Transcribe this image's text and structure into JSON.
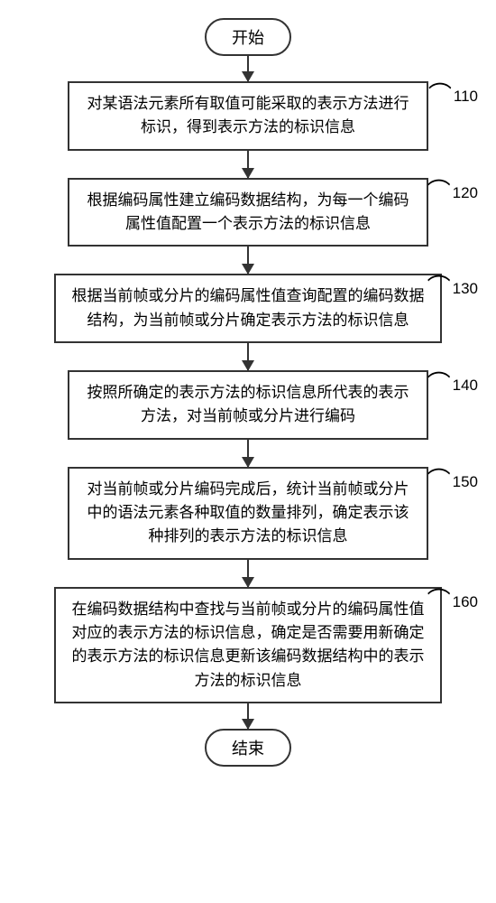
{
  "terminals": {
    "start": "开始",
    "end": "结束"
  },
  "steps": [
    {
      "id": "110",
      "text": "对某语法元素所有取值可能采取的表示方法进行标识，得到表示方法的标识信息",
      "width": "w-narrow"
    },
    {
      "id": "120",
      "text": "根据编码属性建立编码数据结构，为每一个编码属性值配置一个表示方法的标识信息",
      "width": "w-narrow"
    },
    {
      "id": "130",
      "text": "根据当前帧或分片的编码属性值查询配置的编码数据结构，为当前帧或分片确定表示方法的标识信息",
      "width": "w-wide"
    },
    {
      "id": "140",
      "text": "按照所确定的表示方法的标识信息所代表的表示方法，对当前帧或分片进行编码",
      "width": "w-narrow"
    },
    {
      "id": "150",
      "text": "对当前帧或分片编码完成后，统计当前帧或分片中的语法元素各种取值的数量排列，确定表示该种排列的表示方法的标识信息",
      "width": "w-narrow"
    },
    {
      "id": "160",
      "text": "在编码数据结构中查找与当前帧或分片的编码属性值对应的表示方法的标识信息，确定是否需要用新确定的表示方法的标识信息更新该编码数据结构中的表示方法的标识信息",
      "width": "w-wide"
    }
  ],
  "style": {
    "border_color": "#333333",
    "background": "#ffffff",
    "font_family": "SimSun",
    "process_fontsize": 17,
    "terminal_fontsize": 18,
    "label_fontsize": 17,
    "line_width": 2,
    "arrowhead_w": 14,
    "arrowhead_h": 12,
    "terminal_radius": 22,
    "narrow_width": 400,
    "wide_width": 430,
    "arrow_gap": 28
  }
}
